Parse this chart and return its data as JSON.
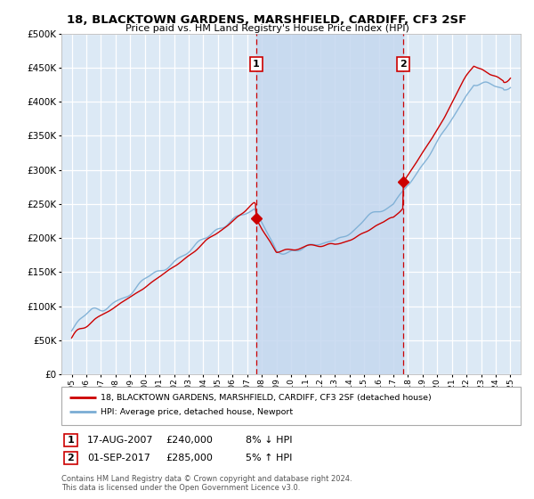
{
  "title": "18, BLACKTOWN GARDENS, MARSHFIELD, CARDIFF, CF3 2SF",
  "subtitle": "Price paid vs. HM Land Registry's House Price Index (HPI)",
  "red_label": "18, BLACKTOWN GARDENS, MARSHFIELD, CARDIFF, CF3 2SF (detached house)",
  "blue_label": "HPI: Average price, detached house, Newport",
  "annotation1": {
    "num": "1",
    "date": "17-AUG-2007",
    "price": "£240,000",
    "pct": "8% ↓ HPI",
    "year": 2007.62
  },
  "annotation2": {
    "num": "2",
    "date": "01-SEP-2017",
    "price": "£285,000",
    "pct": "5% ↑ HPI",
    "year": 2017.67
  },
  "footnote1": "Contains HM Land Registry data © Crown copyright and database right 2024.",
  "footnote2": "This data is licensed under the Open Government Licence v3.0.",
  "ylim": [
    0,
    500000
  ],
  "yticks": [
    0,
    50000,
    100000,
    150000,
    200000,
    250000,
    300000,
    350000,
    400000,
    450000,
    500000
  ],
  "background_color": "#dce9f5",
  "shaded_color": "#c5d8ef",
  "grid_color": "#ffffff",
  "red_color": "#cc0000",
  "blue_color": "#7aadd4",
  "sale1_value": 240000,
  "sale2_value": 285000,
  "sale1_year": 2007.62,
  "sale2_year": 2017.67
}
